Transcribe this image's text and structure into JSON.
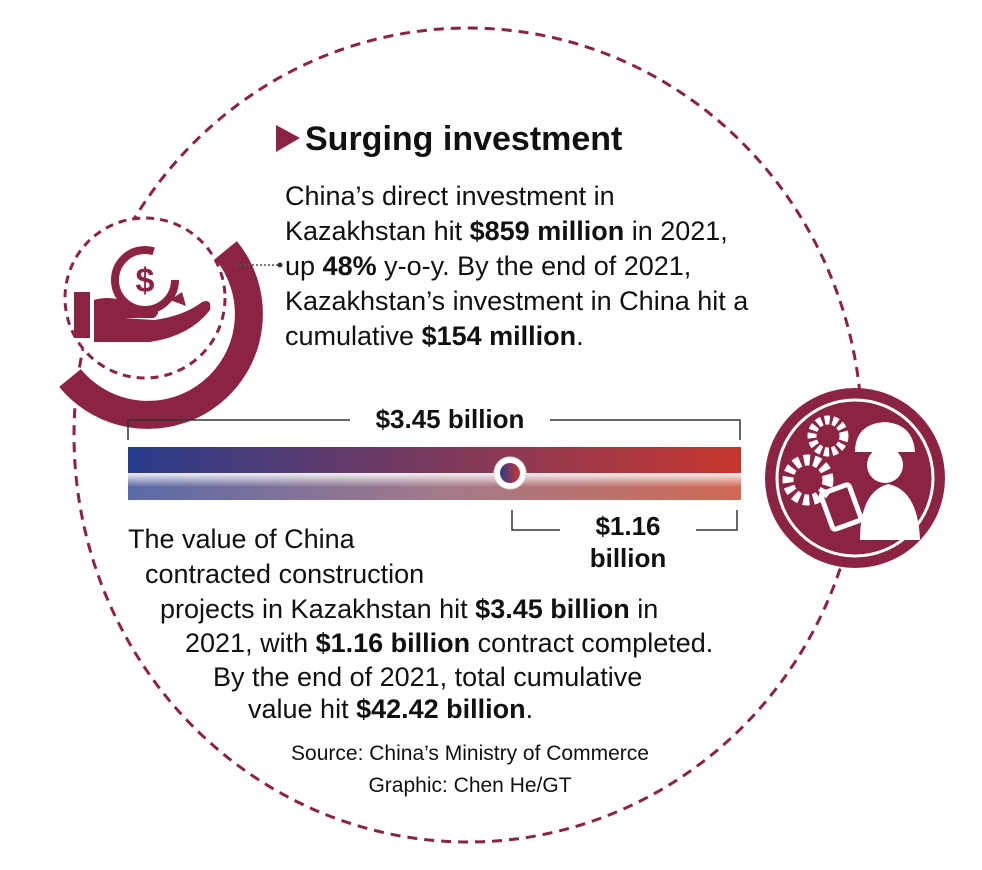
{
  "title": "Surging investment",
  "investment": {
    "lines": [
      [
        {
          "text": "China’s direct investment in"
        }
      ],
      [
        {
          "text": "Kazakhstan hit "
        },
        {
          "text": "$859 million",
          "bold": true
        },
        {
          "text": " in 2021,"
        }
      ],
      [
        {
          "text": "up "
        },
        {
          "text": "48%",
          "bold": true
        },
        {
          "text": " y-o-y. By the end of 2021,"
        }
      ],
      [
        {
          "text": "Kazakhstan’s investment in China hit a"
        }
      ],
      [
        {
          "text": "cumulative "
        },
        {
          "text": "$154 million",
          "bold": true
        },
        {
          "text": "."
        }
      ]
    ]
  },
  "gauge": {
    "total_label": "$3.45 billion",
    "completed_label": [
      "$1.16",
      "billion"
    ]
  },
  "construction": {
    "lines": [
      [
        {
          "text": "The value of China"
        }
      ],
      [
        {
          "text": "contracted construction"
        }
      ],
      [
        {
          "text": "projects in Kazakhstan hit "
        },
        {
          "text": "$3.45 billion",
          "bold": true
        },
        {
          "text": " in"
        }
      ],
      [
        {
          "text": "2021, with "
        },
        {
          "text": "$1.16 billion",
          "bold": true
        },
        {
          "text": " contract completed."
        }
      ],
      [
        {
          "text": "By the end of 2021, total cumulative"
        }
      ],
      [
        {
          "text": "value hit "
        },
        {
          "text": "$42.42 billion",
          "bold": true
        },
        {
          "text": "."
        }
      ]
    ]
  },
  "source": "Source: China’s Ministry of Commerce",
  "credit": "Graphic: Chen He/GT"
}
